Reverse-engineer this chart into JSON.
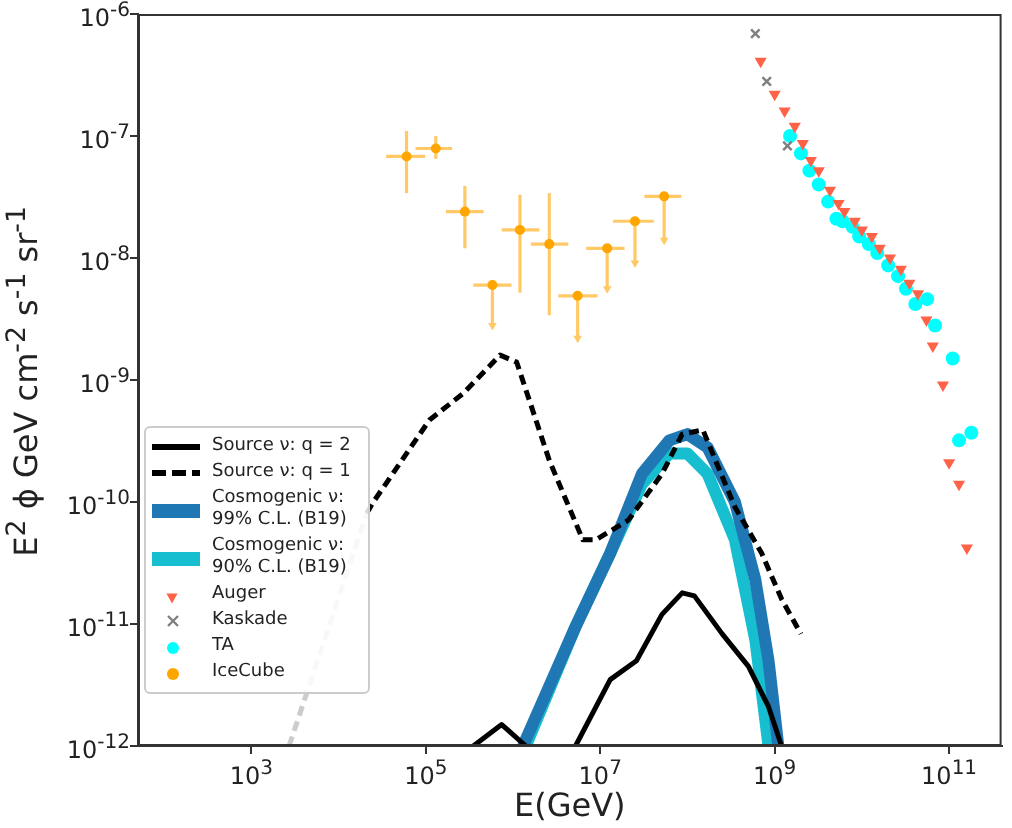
{
  "chart_data": {
    "type": "line",
    "xlabel": "E(GeV)",
    "ylabel": "E$^{2}$ ϕ GeV cm$^{-2}$ s$^{-1}$ sr$^{-1}$",
    "log": "xy",
    "grid": false,
    "legend": "bottom left",
    "xlim": [
      50,
      400000000000.0
    ],
    "ylim": [
      1e-12,
      1e-06
    ],
    "xticks": [
      {
        "value": 1000,
        "label": "10$^{3}$"
      },
      {
        "value": 100000,
        "label": "10$^{5}$"
      },
      {
        "value": 10000000,
        "label": "10$^{7}$"
      },
      {
        "value": 1000000000,
        "label": "10$^{9}$"
      },
      {
        "value": 100000000000,
        "label": "10$^{11}$"
      }
    ],
    "yticks": [
      {
        "value": 1e-12,
        "label": "10$^{-12}$"
      },
      {
        "value": 1e-11,
        "label": "10$^{-11}$"
      },
      {
        "value": 1e-10,
        "label": "10$^{-10}$"
      },
      {
        "value": 1e-09,
        "label": "10$^{-9}$"
      },
      {
        "value": 1e-08,
        "label": "10$^{-8}$"
      },
      {
        "value": 1e-07,
        "label": "10$^{-7}$"
      },
      {
        "value": 1e-06,
        "label": "10$^{-6}$"
      }
    ],
    "series": [
      {
        "name": "Source ν: q = 2",
        "color": "#000000",
        "line_style": "solid",
        "marker": "none",
        "x": [
          350000,
          740000,
          1400000,
          3000000,
          5200000,
          13000000,
          26000000,
          51000000,
          87000000,
          120000000,
          250000000,
          500000000,
          850000000,
          1200000000
        ],
        "values": [
          1e-12,
          1.5e-12,
          1e-12,
          null,
          1e-12,
          3.5e-12,
          5e-12,
          1.2e-11,
          1.8e-11,
          1.7e-11,
          8.3e-12,
          4.5e-12,
          2.1e-12,
          1e-12
        ]
      },
      {
        "name": "Source ν: q = 1",
        "color": "#000000",
        "line_style": "dashed",
        "marker": "none",
        "x": [
          21000,
          25000,
          110000,
          270000,
          710000,
          1100000,
          2600000,
          6300000,
          8900000,
          21000000,
          51000000,
          87000000,
          150000000,
          350000000,
          710000000,
          1200000000,
          2000000000
        ],
        "values": [
          8.1e-11,
          1e-10,
          4.7e-10,
          7.8e-10,
          1.6e-09,
          1.4e-09,
          2.2e-10,
          4.9e-11,
          4.9e-11,
          7.1e-11,
          1.7e-10,
          3.6e-10,
          3.9e-10,
          9.1e-11,
          3.8e-11,
          1.6e-11,
          8.3e-12
        ]
      },
      {
        "color": "#cccccc",
        "line_style": "dashed",
        "marker": "none",
        "x": [
          2700,
          21000
        ],
        "values": [
          1e-12,
          8.1e-11
        ]
      },
      {
        "name": "Cosmogenic ν: 99% C.L. (B19)",
        "color": "#1f77b4",
        "marker": "none",
        "x": [
          1300000,
          5200000,
          13000000,
          30000000,
          62000000,
          100000000,
          170000000,
          350000000,
          600000000,
          850000000,
          1100000000
        ],
        "values": [
          1e-12,
          9.5e-12,
          3.8e-11,
          1.7e-10,
          3.2e-10,
          3.6e-10,
          2.8e-10,
          1e-10,
          2.3e-11,
          5e-12,
          1e-12
        ]
      },
      {
        "name": "Cosmogenic ν: 90% C.L. (B19)",
        "color": "#17becf",
        "marker": "none",
        "x": [
          1400000,
          5200000,
          13000000,
          30000000,
          62000000,
          100000000,
          170000000,
          350000000,
          600000000,
          850000000
        ],
        "values": [
          1e-12,
          9.5e-12,
          3.8e-11,
          1.4e-10,
          2.5e-10,
          2.5e-10,
          1.7e-10,
          4.9e-11,
          7.4e-12,
          1e-12
        ]
      },
      {
        "name": "Auger",
        "type": "scatter",
        "color": "#ff6347",
        "marker": "triangle",
        "x": [
          690000000,
          1000000000,
          1300000000,
          1700000000,
          2100000000,
          2600000000,
          3200000000,
          4300000000,
          5400000000,
          6300000000,
          8300000000,
          10000000000,
          13000000000,
          16000000000,
          21000000000,
          28000000000,
          35000000000,
          44000000000,
          55000000000,
          65000000000,
          85000000000,
          100000000000,
          130000000000,
          160000000000
        ],
        "values": [
          4.1e-07,
          2.2e-07,
          1.6e-07,
          1.2e-07,
          8.7e-08,
          6.3e-08,
          5.2e-08,
          3.6e-08,
          2.8e-08,
          2.4e-08,
          2e-08,
          1.7e-08,
          1.5e-08,
          1.2e-08,
          1e-08,
          8.1e-09,
          6.2e-09,
          5.1e-09,
          3.1e-09,
          1.9e-09,
          9.1e-10,
          2.1e-10,
          1.4e-10,
          4.2e-11
        ]
      },
      {
        "name": "Kaskade",
        "type": "scatter",
        "color": "#808080",
        "marker": "cross",
        "x": [
          600000000,
          810000000,
          1400000000
        ],
        "values": [
          6.9e-07,
          2.8e-07,
          8.3e-08
        ]
      },
      {
        "name": "TA",
        "type": "scatter",
        "color": "#00ffff",
        "marker": "circle",
        "x": [
          1500000000,
          2000000000,
          2500000000,
          3200000000,
          4100000000,
          5100000000,
          6000000000,
          7800000000,
          9300000000,
          12000000000,
          15000000000,
          20000000000,
          26000000000,
          32000000000,
          41000000000,
          56000000000,
          69000000000,
          110000000000,
          130000000000,
          180000000000
        ],
        "values": [
          1e-07,
          7.2e-08,
          5.2e-08,
          4e-08,
          2.9e-08,
          2.1e-08,
          2e-08,
          1.8e-08,
          1.5e-08,
          1.3e-08,
          1.1e-08,
          8.7e-09,
          7.1e-09,
          5.6e-09,
          4.2e-09,
          4.6e-09,
          2.8e-09,
          1.5e-09,
          3.2e-10,
          3.7e-10
        ]
      },
      {
        "type": "scatter",
        "color": "#ffc966",
        "marker": "triangle",
        "x": [
          580000,
          5500000,
          12000000,
          25000000,
          54000000
        ],
        "values": [
          2.8e-09,
          2.2e-09,
          5.6e-09,
          9.1e-09,
          1.4e-08
        ]
      },
      {
        "name": "IceCube",
        "type": "scatter",
        "color": "#ffa500",
        "marker": "circle",
        "x": [
          60000,
          130000,
          280000,
          580000,
          1200000,
          2600000,
          5500000,
          12000000,
          25000000,
          54000000
        ],
        "values": [
          6.8e-08,
          7.9e-08,
          2.4e-08,
          6e-09,
          1.7e-08,
          1.3e-08,
          4.9e-09,
          1.2e-08,
          2e-08,
          3.2e-08
        ],
        "errors": [
          [
            3.4e-08,
            1.1e-07
          ],
          [
            6.5e-08,
            1e-07
          ],
          [
            1.2e-08,
            3.9e-08
          ],
          [
            2.8e-09,
            6e-09
          ],
          [
            5.2e-09,
            3.3e-08
          ],
          [
            3.4e-09,
            3.4e-08
          ],
          [
            2.2e-09,
            4.9e-09
          ],
          [
            5.6e-09,
            1.2e-08
          ],
          [
            9.1e-09,
            2e-08
          ],
          [
            1.4e-08,
            3.2e-08
          ]
        ],
        "xerrors": [
          [
            35000,
            98000
          ],
          [
            76000,
            200000
          ],
          [
            170000,
            460000
          ],
          [
            350000,
            960000
          ],
          [
            740000,
            2000000
          ],
          [
            1600000,
            4300000
          ],
          [
            3300000,
            9300000
          ],
          [
            6900000,
            19000000
          ],
          [
            14000000,
            41000000
          ],
          [
            32000000,
            85000000
          ]
        ]
      }
    ]
  }
}
